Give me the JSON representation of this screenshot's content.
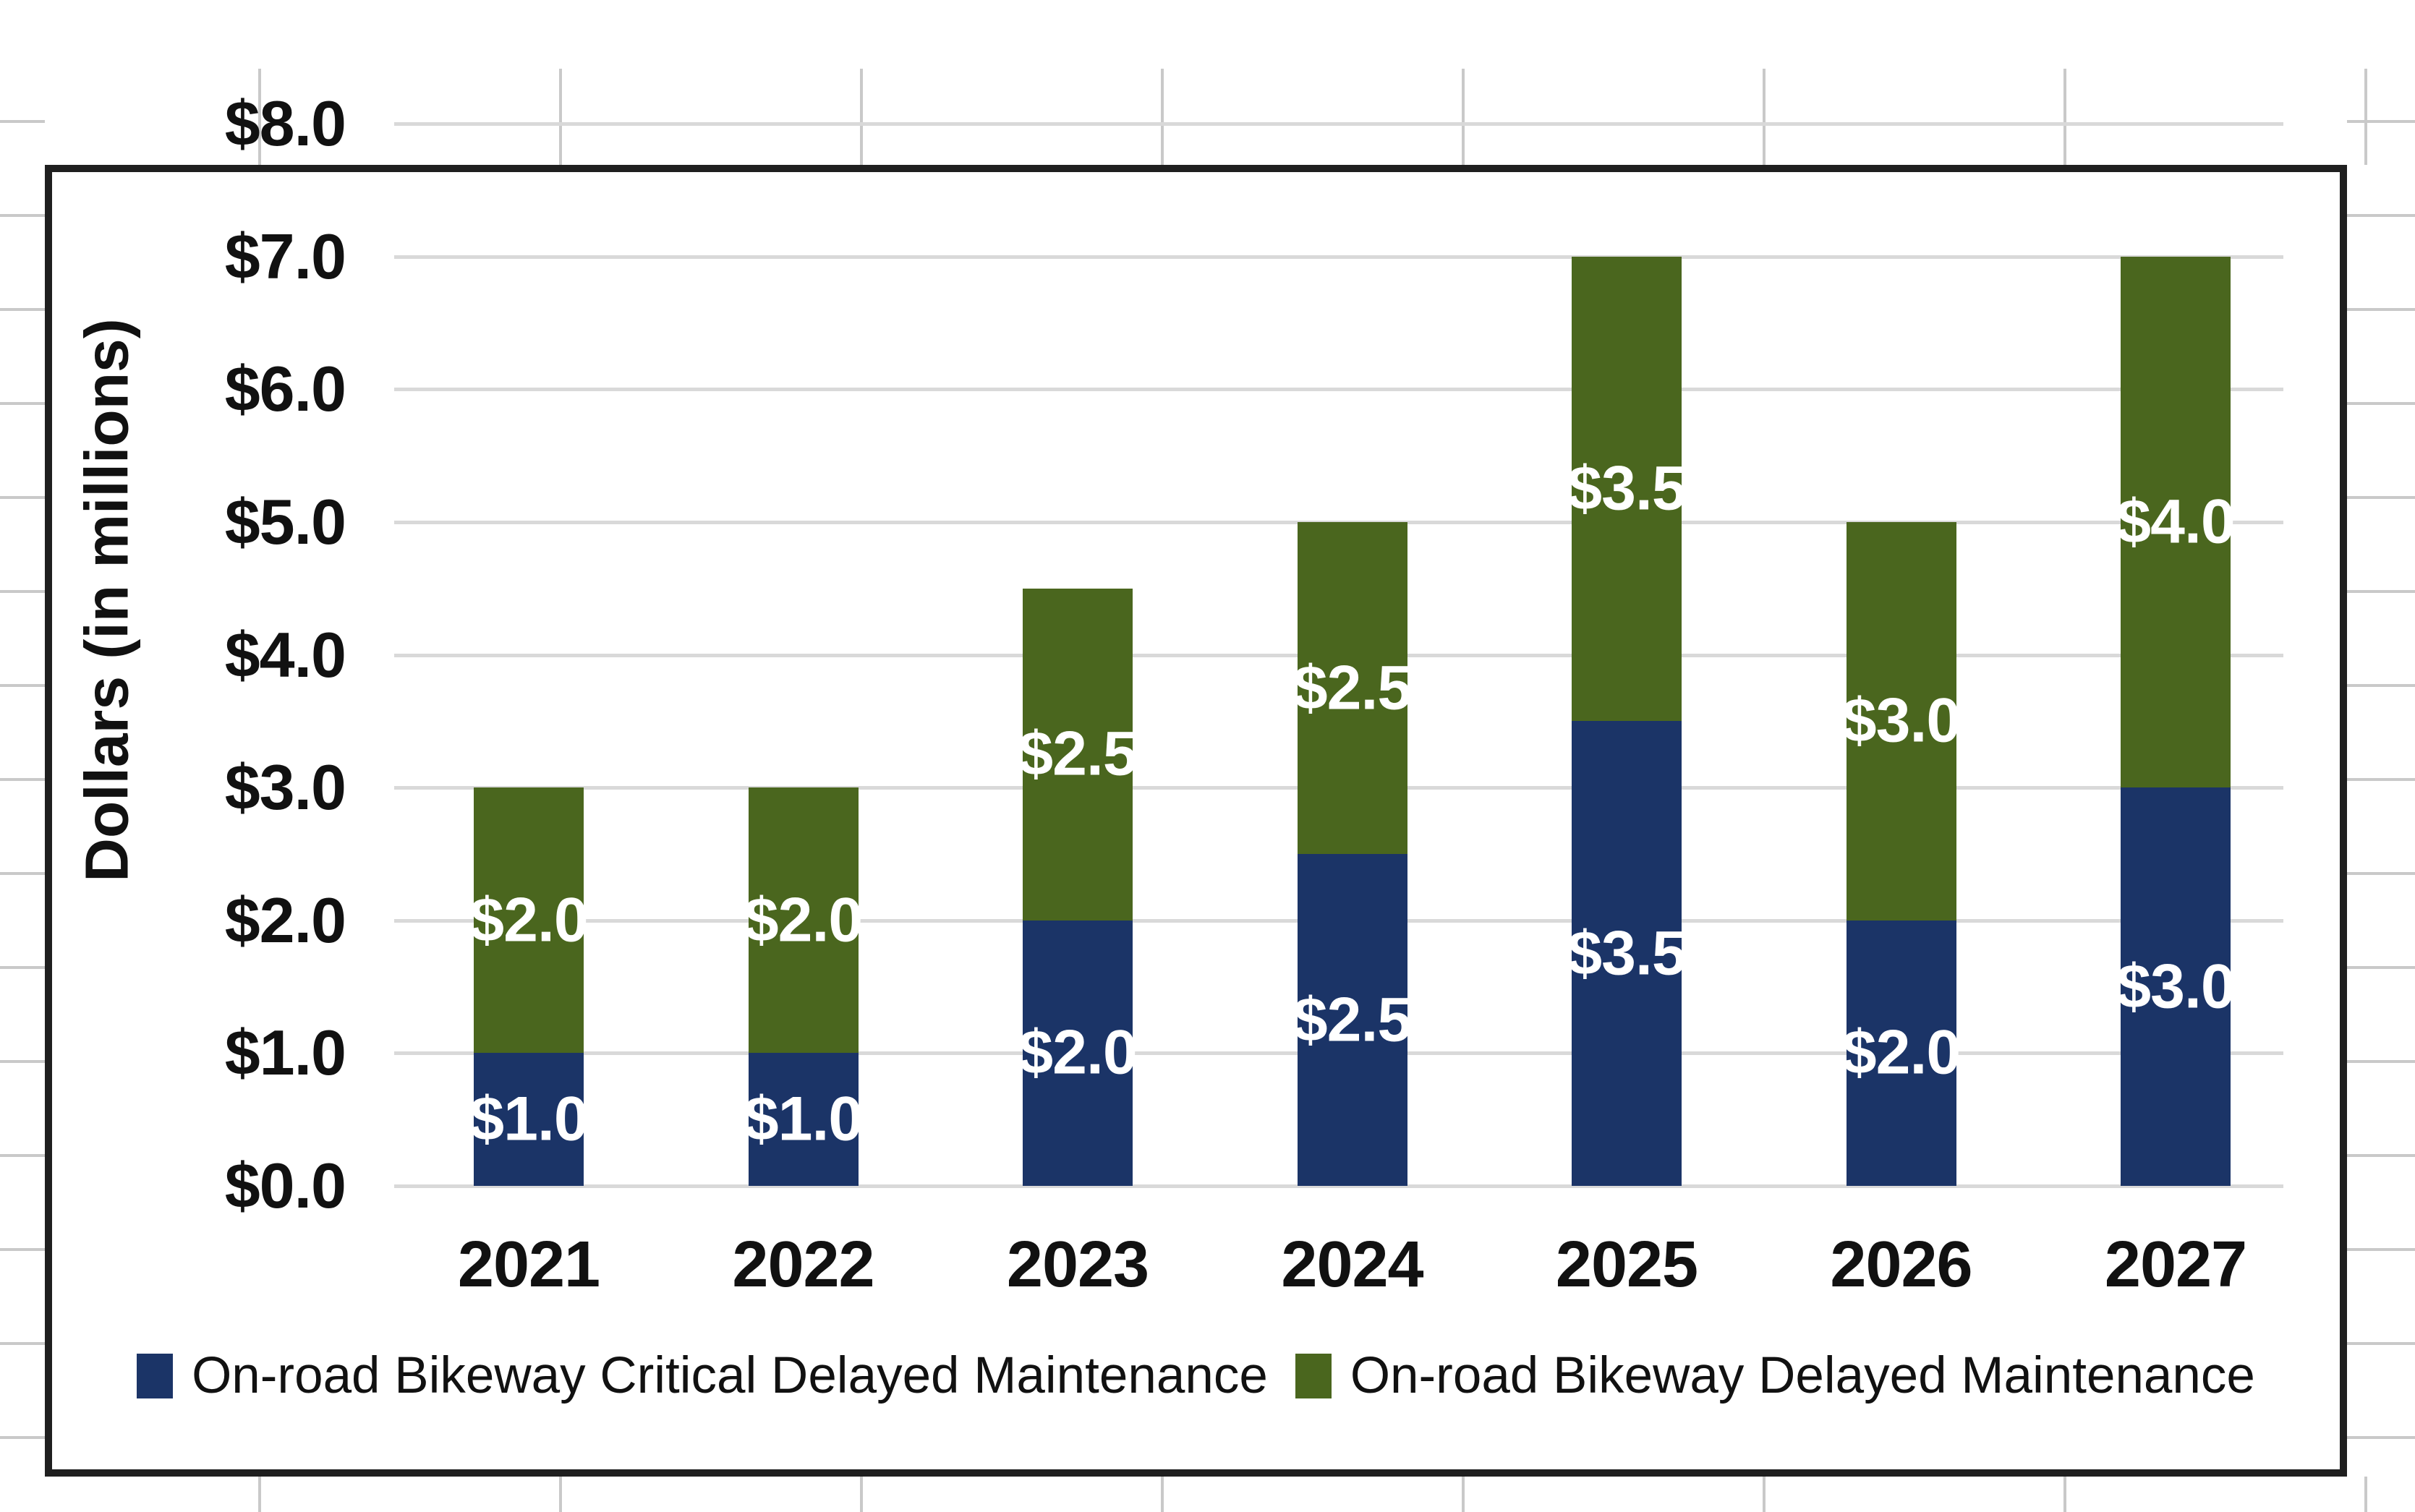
{
  "y_axis": {
    "title": "Dollars (in millions)",
    "tick_labels": [
      "$0.0",
      "$1.0",
      "$2.0",
      "$3.0",
      "$4.0",
      "$5.0",
      "$6.0",
      "$7.0",
      "$8.0"
    ]
  },
  "chart_data": {
    "type": "bar",
    "stacked": true,
    "title": "",
    "xlabel": "",
    "ylabel": "Dollars (in millions)",
    "categories": [
      "2021",
      "2022",
      "2023",
      "2024",
      "2025",
      "2026",
      "2027"
    ],
    "series": [
      {
        "name": "On-road Bikeway Critical Delayed Maintenance",
        "color": "#1b3467",
        "values": [
          1.0,
          1.0,
          2.0,
          2.5,
          3.5,
          2.0,
          3.0
        ],
        "data_labels": [
          "$1.0",
          "$1.0",
          "$2.0",
          "$2.5",
          "$3.5",
          "$2.0",
          "$3.0"
        ]
      },
      {
        "name": "On-road Bikeway Delayed Maintenance",
        "color": "#4a661e",
        "values": [
          2.0,
          2.0,
          2.5,
          2.5,
          3.5,
          3.0,
          4.0
        ],
        "data_labels": [
          "$2.0",
          "$2.0",
          "$2.5",
          "$2.5",
          "$3.5",
          "$3.0",
          "$4.0"
        ]
      }
    ],
    "totals": [
      3.0,
      3.0,
      4.5,
      5.0,
      7.0,
      5.0,
      7.0
    ],
    "ylim": [
      0,
      8
    ],
    "ytick_step": 1.0,
    "grid": "horizontal",
    "gridline_color": "#d9d9d9",
    "legend_position": "bottom",
    "data_label_color": "#ffffff"
  }
}
